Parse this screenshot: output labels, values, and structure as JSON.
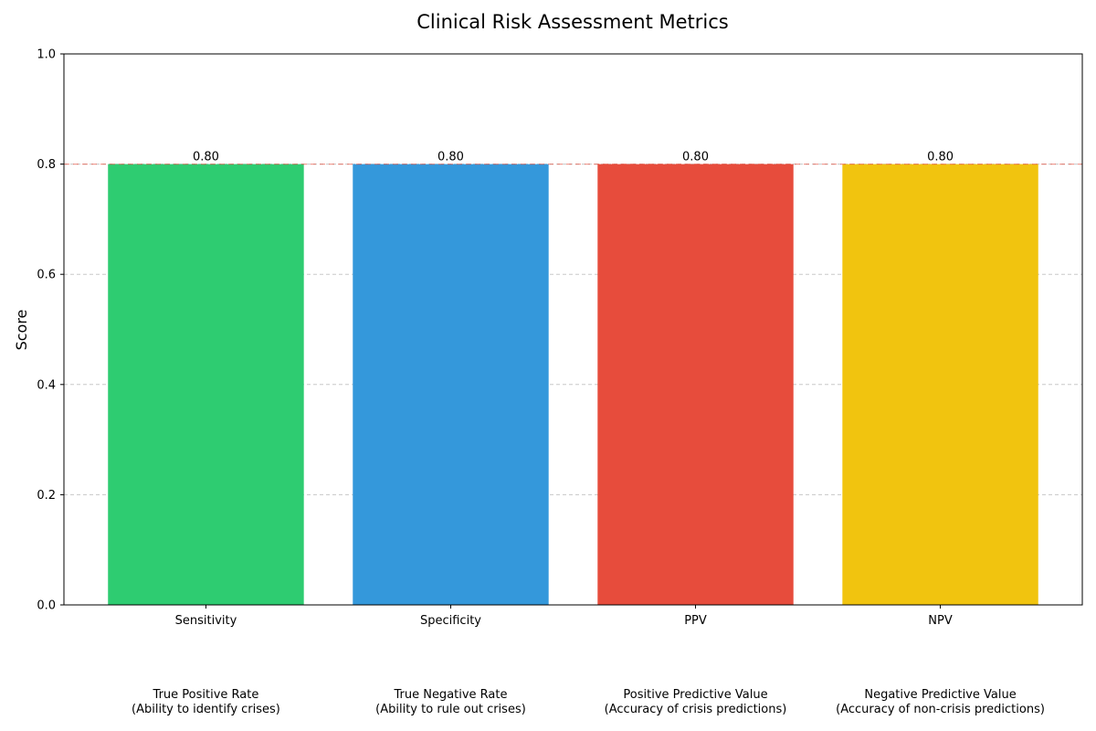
{
  "chart_data": {
    "type": "bar",
    "title": "Clinical Risk Assessment Metrics",
    "ylabel": "Score",
    "xlabel": "",
    "ylim": [
      0,
      1.0
    ],
    "yticks": [
      "0.0",
      "0.2",
      "0.4",
      "0.6",
      "0.8",
      "1.0"
    ],
    "ytick_values": [
      0,
      0.2,
      0.4,
      0.6,
      0.8,
      1.0
    ],
    "categories": [
      "Sensitivity",
      "Specificity",
      "PPV",
      "NPV"
    ],
    "values": [
      0.8,
      0.8,
      0.8,
      0.8
    ],
    "value_labels": [
      "0.80",
      "0.80",
      "0.80",
      "0.80"
    ],
    "descriptions": [
      [
        "True Positive Rate",
        "(Ability to identify crises)"
      ],
      [
        "True Negative Rate",
        "(Ability to rule out crises)"
      ],
      [
        "Positive Predictive Value",
        "(Accuracy of crisis predictions)"
      ],
      [
        "Negative Predictive Value",
        "(Accuracy of non-crisis predictions)"
      ]
    ],
    "colors": [
      "#2ecc71",
      "#3498db",
      "#e74c3c",
      "#f1c40f"
    ],
    "reference_line": {
      "value": 0.8,
      "color": "#e74c3c",
      "style": "dashed"
    },
    "grid": {
      "y": true,
      "style": "dashed",
      "color": "#c8c8c8"
    },
    "legend": "none"
  }
}
